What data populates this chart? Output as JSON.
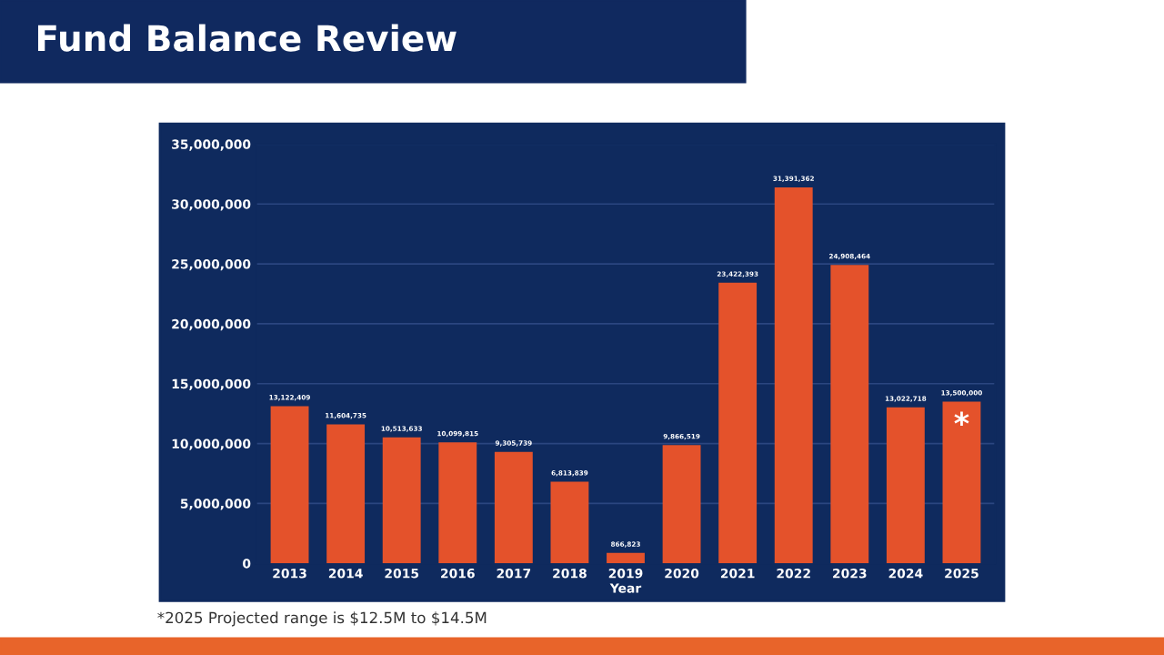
{
  "chart_data": {
    "type": "bar",
    "title": "Fund Balance Review",
    "xlabel": "Year",
    "categories": [
      "2013",
      "2014",
      "2015",
      "2016",
      "2017",
      "2018",
      "2019",
      "2020",
      "2021",
      "2022",
      "2023",
      "2024",
      "2025"
    ],
    "values": [
      13122409,
      11604735,
      10513633,
      10099815,
      9305739,
      6813839,
      866823,
      9866519,
      23422393,
      31391362,
      24908464,
      13022718,
      13500000
    ],
    "value_labels": [
      "13,122,409",
      "11,604,735",
      "10,513,633",
      "10,099,815",
      "9,305,739",
      "6,813,839",
      "866,823",
      "9,866,519",
      "23,422,393",
      "31,391,362",
      "24,908,464",
      "13,022,718",
      "13,500,000"
    ],
    "color": "#e4522b",
    "ylim": [
      0,
      35000000
    ],
    "yticks": [
      {
        "value": 0,
        "label": "0"
      },
      {
        "value": 5000000,
        "label": "5,000,000"
      },
      {
        "value": 10000000,
        "label": "10,000,000"
      },
      {
        "value": 15000000,
        "label": "15,000,000"
      },
      {
        "value": 20000000,
        "label": "20,000,000"
      },
      {
        "value": 25000000,
        "label": "25,000,000"
      },
      {
        "value": 30000000,
        "label": "30,000,000"
      },
      {
        "value": 35000000,
        "label": "35,000,000"
      }
    ],
    "grid": "y",
    "annotations": [
      "*",
      "*2025 Projected range is $12.5M to $14.5M"
    ]
  }
}
